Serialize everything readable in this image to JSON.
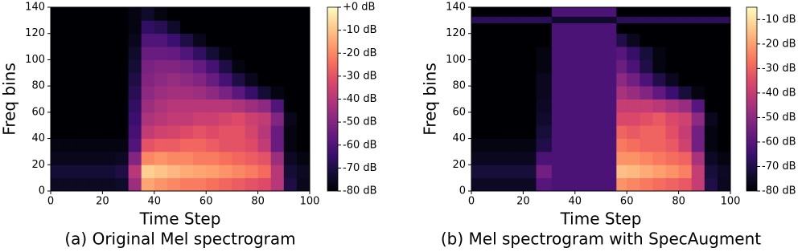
{
  "chart_data": [
    {
      "type": "heatmap",
      "caption": "(a) Original Mel spectrogram",
      "xlabel": "Time Step",
      "ylabel": "Freq bins",
      "colormap": "magma",
      "xlim": [
        0,
        100
      ],
      "ylim": [
        0,
        140
      ],
      "xticks": [
        0,
        20,
        40,
        60,
        80,
        100
      ],
      "yticks": [
        0,
        20,
        40,
        60,
        80,
        100,
        120,
        140
      ],
      "x_edges": [
        0,
        5,
        10,
        15,
        20,
        25,
        30,
        35,
        40,
        45,
        50,
        55,
        60,
        65,
        70,
        75,
        80,
        85,
        90,
        95,
        100
      ],
      "y_edges": [
        0,
        10,
        20,
        30,
        40,
        50,
        60,
        70,
        80,
        90,
        100,
        110,
        120,
        130,
        140
      ],
      "values": [
        [
          -75,
          -75,
          -75,
          -75,
          -75,
          -74,
          -45,
          -15,
          -18,
          -20,
          -22,
          -22,
          -24,
          -26,
          -28,
          -30,
          -32,
          -40,
          -70,
          -76
        ],
        [
          -72,
          -72,
          -72,
          -72,
          -72,
          -70,
          -40,
          -8,
          -10,
          -12,
          -14,
          -15,
          -16,
          -18,
          -20,
          -22,
          -25,
          -40,
          -72,
          -75
        ],
        [
          -76,
          -76,
          -76,
          -76,
          -76,
          -75,
          -50,
          -20,
          -18,
          -20,
          -20,
          -22,
          -22,
          -24,
          -26,
          -28,
          -30,
          -45,
          -75,
          -78
        ],
        [
          -78,
          -78,
          -78,
          -78,
          -78,
          -78,
          -60,
          -30,
          -28,
          -28,
          -26,
          -26,
          -28,
          -30,
          -30,
          -32,
          -38,
          -55,
          -78,
          -80
        ],
        [
          -80,
          -80,
          -80,
          -80,
          -80,
          -80,
          -62,
          -38,
          -35,
          -34,
          -32,
          -30,
          -32,
          -30,
          -30,
          -34,
          -40,
          -55,
          -78,
          -80
        ],
        [
          -80,
          -80,
          -80,
          -80,
          -80,
          -80,
          -64,
          -42,
          -40,
          -38,
          -38,
          -36,
          -36,
          -34,
          -32,
          -36,
          -38,
          -50,
          -76,
          -80
        ],
        [
          -80,
          -80,
          -80,
          -80,
          -80,
          -80,
          -66,
          -45,
          -42,
          -40,
          -40,
          -40,
          -40,
          -40,
          -42,
          -45,
          -48,
          -60,
          -80,
          -80
        ],
        [
          -80,
          -80,
          -80,
          -80,
          -80,
          -80,
          -68,
          -48,
          -45,
          -44,
          -44,
          -45,
          -48,
          -52,
          -58,
          -65,
          -72,
          -78,
          -80,
          -80
        ],
        [
          -80,
          -80,
          -80,
          -80,
          -80,
          -80,
          -70,
          -50,
          -48,
          -46,
          -48,
          -50,
          -55,
          -62,
          -70,
          -76,
          -80,
          -80,
          -80,
          -80
        ],
        [
          -80,
          -80,
          -80,
          -80,
          -80,
          -80,
          -72,
          -52,
          -50,
          -50,
          -52,
          -56,
          -62,
          -70,
          -78,
          -80,
          -80,
          -80,
          -80,
          -80
        ],
        [
          -80,
          -80,
          -80,
          -80,
          -80,
          -80,
          -74,
          -55,
          -55,
          -56,
          -60,
          -66,
          -72,
          -78,
          -80,
          -80,
          -80,
          -80,
          -80,
          -80
        ],
        [
          -80,
          -80,
          -80,
          -80,
          -80,
          -80,
          -76,
          -60,
          -60,
          -64,
          -70,
          -76,
          -80,
          -80,
          -80,
          -80,
          -80,
          -80,
          -80,
          -80
        ],
        [
          -80,
          -80,
          -80,
          -80,
          -80,
          -80,
          -78,
          -66,
          -68,
          -74,
          -80,
          -80,
          -80,
          -80,
          -80,
          -80,
          -80,
          -80,
          -80,
          -80
        ],
        [
          -80,
          -80,
          -80,
          -80,
          -80,
          -80,
          -78,
          -74,
          -78,
          -80,
          -80,
          -80,
          -80,
          -80,
          -80,
          -80,
          -80,
          -80,
          -80,
          -80
        ]
      ],
      "clim": [
        -80,
        0
      ],
      "cticks": [
        {
          "value": 0,
          "label": "+0 dB"
        },
        {
          "value": -10,
          "label": "-10 dB"
        },
        {
          "value": -20,
          "label": "-20 dB"
        },
        {
          "value": -30,
          "label": "-30 dB"
        },
        {
          "value": -40,
          "label": "-40 dB"
        },
        {
          "value": -50,
          "label": "-50 dB"
        },
        {
          "value": -60,
          "label": "-60 dB"
        },
        {
          "value": -70,
          "label": "-70 dB"
        },
        {
          "value": -80,
          "label": "-80 dB"
        }
      ]
    },
    {
      "type": "heatmap",
      "caption": "(b) Mel spectrogram with SpecAugment",
      "xlabel": "Time Step",
      "ylabel": "Freq bins",
      "colormap": "magma",
      "xlim": [
        0,
        100
      ],
      "ylim": [
        0,
        140
      ],
      "xticks": [
        0,
        20,
        40,
        60,
        80,
        100
      ],
      "yticks": [
        0,
        20,
        40,
        60,
        80,
        100,
        120,
        140
      ],
      "x_edges": [
        0,
        5,
        10,
        15,
        20,
        25,
        31,
        56,
        60,
        65,
        70,
        75,
        80,
        85,
        90,
        95,
        100
      ],
      "y_edges": [
        0,
        10,
        20,
        30,
        40,
        50,
        60,
        70,
        80,
        90,
        100,
        110,
        120,
        128,
        133,
        140
      ],
      "values": [
        [
          -75,
          -75,
          -75,
          -75,
          -75,
          -60,
          -62,
          -22,
          -24,
          -26,
          -28,
          -30,
          -32,
          -40,
          -70,
          -76
        ],
        [
          -72,
          -72,
          -72,
          -72,
          -72,
          -55,
          -62,
          -15,
          -16,
          -18,
          -20,
          -22,
          -25,
          -40,
          -72,
          -75
        ],
        [
          -76,
          -76,
          -76,
          -76,
          -76,
          -62,
          -62,
          -22,
          -22,
          -24,
          -26,
          -28,
          -30,
          -45,
          -75,
          -78
        ],
        [
          -78,
          -78,
          -78,
          -78,
          -78,
          -70,
          -62,
          -26,
          -28,
          -30,
          -30,
          -32,
          -38,
          -55,
          -78,
          -80
        ],
        [
          -80,
          -80,
          -80,
          -80,
          -80,
          -72,
          -62,
          -30,
          -32,
          -30,
          -30,
          -34,
          -40,
          -55,
          -78,
          -80
        ],
        [
          -80,
          -80,
          -80,
          -80,
          -80,
          -74,
          -62,
          -36,
          -36,
          -34,
          -32,
          -36,
          -38,
          -50,
          -76,
          -80
        ],
        [
          -80,
          -80,
          -80,
          -80,
          -80,
          -75,
          -62,
          -40,
          -40,
          -40,
          -42,
          -45,
          -48,
          -60,
          -80,
          -80
        ],
        [
          -80,
          -80,
          -80,
          -80,
          -80,
          -76,
          -62,
          -45,
          -48,
          -52,
          -58,
          -65,
          -72,
          -78,
          -80,
          -80
        ],
        [
          -80,
          -80,
          -80,
          -80,
          -80,
          -76,
          -62,
          -50,
          -55,
          -62,
          -70,
          -76,
          -80,
          -80,
          -80,
          -80
        ],
        [
          -80,
          -80,
          -80,
          -80,
          -80,
          -78,
          -62,
          -56,
          -62,
          -70,
          -78,
          -80,
          -80,
          -80,
          -80,
          -80
        ],
        [
          -80,
          -80,
          -80,
          -80,
          -80,
          -78,
          -62,
          -60,
          -66,
          -72,
          -78,
          -80,
          -80,
          -80,
          -80,
          -80
        ],
        [
          -80,
          -80,
          -80,
          -80,
          -80,
          -80,
          -62,
          -70,
          -76,
          -80,
          -80,
          -80,
          -80,
          -80,
          -80,
          -80
        ],
        [
          -80,
          -80,
          -80,
          -80,
          -80,
          -80,
          -62,
          -80,
          -80,
          -80,
          -80,
          -80,
          -80,
          -80,
          -80,
          -80
        ],
        [
          -68,
          -68,
          -68,
          -68,
          -68,
          -68,
          -74,
          -68,
          -68,
          -68,
          -68,
          -68,
          -68,
          -68,
          -68,
          -68
        ],
        [
          -80,
          -80,
          -80,
          -80,
          -80,
          -80,
          -62,
          -80,
          -80,
          -80,
          -80,
          -80,
          -80,
          -80,
          -80,
          -80
        ]
      ],
      "clim": [
        -80,
        -5
      ],
      "cticks": [
        {
          "value": -10,
          "label": "-10 dB"
        },
        {
          "value": -20,
          "label": "-20 dB"
        },
        {
          "value": -30,
          "label": "-30 dB"
        },
        {
          "value": -40,
          "label": "-40 dB"
        },
        {
          "value": -50,
          "label": "-50 dB"
        },
        {
          "value": -60,
          "label": "-60 dB"
        },
        {
          "value": -70,
          "label": "-70 dB"
        },
        {
          "value": -80,
          "label": "-80 dB"
        }
      ]
    }
  ]
}
